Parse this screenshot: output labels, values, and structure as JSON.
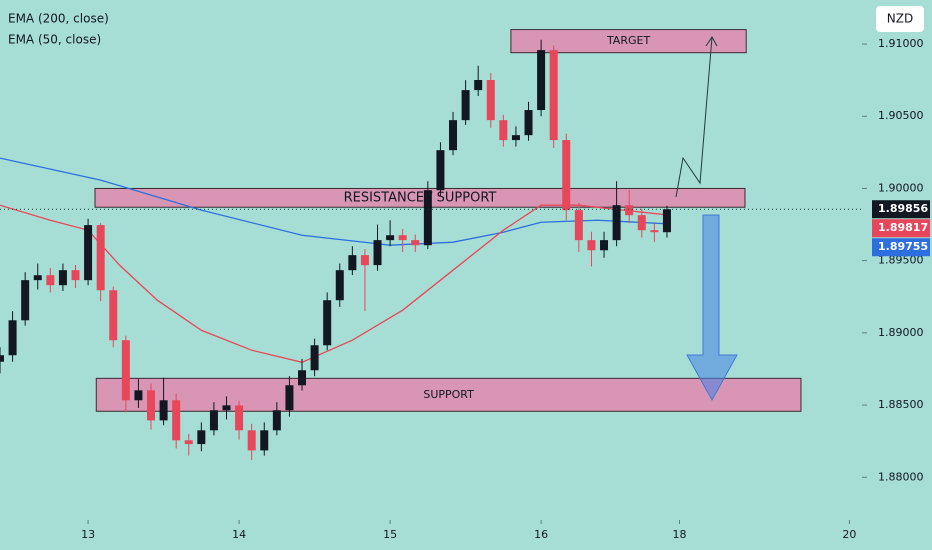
{
  "chart_data": {
    "type": "candlestick",
    "currency": "NZD",
    "up_color": "#131722",
    "down_color": "#e8465a",
    "background": "#a6ded6",
    "xlim": [
      0,
      137
    ],
    "ylim": [
      1.87704,
      1.91305
    ],
    "xticks": [
      {
        "value": 14,
        "label": "13"
      },
      {
        "value": 38,
        "label": "14"
      },
      {
        "value": 62,
        "label": "15"
      },
      {
        "value": 86,
        "label": "16"
      },
      {
        "value": 108,
        "label": "18"
      },
      {
        "value": 135,
        "label": "20"
      }
    ],
    "yticks": [
      {
        "value": 1.91,
        "label": "1.91000"
      },
      {
        "value": 1.905,
        "label": "1.90500"
      },
      {
        "value": 1.9,
        "label": "1.90000"
      },
      {
        "value": 1.895,
        "label": "1.89500"
      },
      {
        "value": 1.89,
        "label": "1.89000"
      },
      {
        "value": 1.885,
        "label": "1.88500"
      },
      {
        "value": 1.88,
        "label": "1.88000"
      }
    ],
    "candles": {
      "x": [
        0,
        2,
        4,
        6,
        8,
        10,
        12,
        14,
        16,
        18,
        20,
        22,
        24,
        26,
        28,
        30,
        32,
        34,
        36,
        38,
        40,
        42,
        44,
        46,
        48,
        50,
        52,
        54,
        56,
        58,
        60,
        62,
        64,
        66,
        68,
        70,
        72,
        74,
        76,
        78,
        80,
        82,
        84,
        86,
        88,
        90,
        92,
        94,
        96,
        98,
        100,
        102,
        104,
        106
      ],
      "open": [
        1.888,
        1.88845,
        1.89087,
        1.89365,
        1.89399,
        1.8933,
        1.89434,
        1.89365,
        1.89746,
        1.89295,
        1.88949,
        1.88533,
        1.88602,
        1.88394,
        1.88533,
        1.88256,
        1.8823,
        1.88325,
        1.88464,
        1.88498,
        1.88325,
        1.88186,
        1.88325,
        1.88464,
        1.88637,
        1.88741,
        1.88914,
        1.89226,
        1.89434,
        1.89538,
        1.89469,
        1.89642,
        1.89676,
        1.89642,
        1.89607,
        1.89988,
        1.90265,
        1.90473,
        1.90681,
        1.90751,
        1.90473,
        1.90335,
        1.90369,
        1.90543,
        1.90958,
        1.90335,
        1.8985,
        1.89642,
        1.89572,
        1.89642,
        1.89884,
        1.89815,
        1.89711,
        1.89697
      ],
      "high": [
        1.889,
        1.8915,
        1.8942,
        1.8948,
        1.8945,
        1.8948,
        1.8947,
        1.8979,
        1.8976,
        1.8932,
        1.8898,
        1.8868,
        1.8865,
        1.8869,
        1.8858,
        1.883,
        1.8838,
        1.8852,
        1.8856,
        1.8853,
        1.8837,
        1.8838,
        1.8852,
        1.887,
        1.8882,
        1.8896,
        1.8928,
        1.8948,
        1.896,
        1.8958,
        1.8975,
        1.8978,
        1.8972,
        1.8968,
        1.9005,
        1.9032,
        1.9053,
        1.9075,
        1.9085,
        1.908,
        1.9051,
        1.9043,
        1.906,
        1.9103,
        1.9099,
        1.9038,
        1.899,
        1.897,
        1.897,
        1.9005,
        1.8999,
        1.8986,
        1.8976,
        1.8988
      ],
      "low": [
        1.8872,
        1.888,
        1.8905,
        1.893,
        1.8928,
        1.8929,
        1.8931,
        1.8933,
        1.8922,
        1.889,
        1.8845,
        1.8848,
        1.8833,
        1.8836,
        1.882,
        1.8815,
        1.8818,
        1.8829,
        1.884,
        1.8826,
        1.8812,
        1.8815,
        1.8829,
        1.8842,
        1.886,
        1.887,
        1.8888,
        1.8918,
        1.894,
        1.8915,
        1.8943,
        1.896,
        1.8956,
        1.8956,
        1.8958,
        1.8995,
        1.9023,
        1.9044,
        1.9064,
        1.9042,
        1.9029,
        1.9029,
        1.9033,
        1.905,
        1.9028,
        1.8978,
        1.8956,
        1.8946,
        1.8952,
        1.896,
        1.8976,
        1.8966,
        1.8963,
        1.8966
      ],
      "close": [
        1.88845,
        1.89087,
        1.89365,
        1.89399,
        1.8933,
        1.89434,
        1.89365,
        1.89746,
        1.89295,
        1.88949,
        1.88533,
        1.88602,
        1.88394,
        1.88533,
        1.88256,
        1.8823,
        1.88325,
        1.88464,
        1.88498,
        1.88325,
        1.88186,
        1.88325,
        1.88464,
        1.88637,
        1.88741,
        1.88914,
        1.89226,
        1.89434,
        1.89538,
        1.89469,
        1.89642,
        1.89676,
        1.89642,
        1.89607,
        1.89988,
        1.90265,
        1.90473,
        1.90681,
        1.90751,
        1.90473,
        1.90335,
        1.90369,
        1.90543,
        1.90958,
        1.90335,
        1.8985,
        1.89642,
        1.89572,
        1.89642,
        1.89884,
        1.89815,
        1.89711,
        1.89697,
        1.89856
      ]
    },
    "series": [
      {
        "name": "EMA (200, close)",
        "color": "#2e6fe0",
        "x": [
          0,
          16,
          32,
          48,
          62,
          72,
          80,
          86,
          95,
          106
        ],
        "values": [
          1.9021,
          1.90058,
          1.8985,
          1.89676,
          1.89607,
          1.89628,
          1.89697,
          1.89766,
          1.8978,
          1.89755
        ]
      },
      {
        "name": "EMA (50, close)",
        "color": "#e8465a",
        "x": [
          0,
          8,
          14,
          19,
          25,
          32,
          40,
          48,
          56,
          64,
          72,
          80,
          86,
          92,
          99,
          106
        ],
        "values": [
          1.89884,
          1.8978,
          1.89711,
          1.89469,
          1.89226,
          1.89018,
          1.8888,
          1.88796,
          1.88949,
          1.89157,
          1.89434,
          1.89711,
          1.89884,
          1.89884,
          1.8985,
          1.89817
        ]
      }
    ],
    "zones": [
      {
        "label": "TARGET",
        "xlim": [
          81.2,
          118.6
        ],
        "ylim": [
          1.9094,
          1.911
        ]
      },
      {
        "label": "RESISTANCE / SUPPORT",
        "xlim": [
          15.1,
          118.4
        ],
        "ylim": [
          1.8987,
          1.9
        ]
      },
      {
        "label": "SUPPORT",
        "xlim": [
          15.3,
          127.3
        ],
        "ylim": [
          1.88457,
          1.88685
        ]
      }
    ]
  }
}
